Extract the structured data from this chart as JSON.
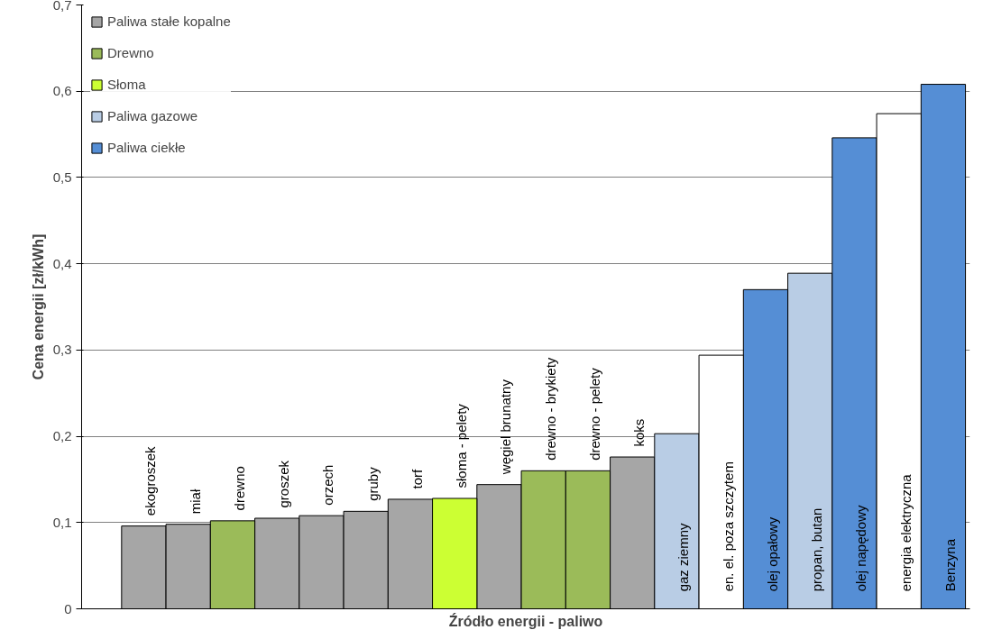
{
  "chart_data": {
    "type": "bar",
    "xlabel": "Źródło energii - paliwo",
    "ylabel": "Cena energii [zł/kWh]",
    "categories": [
      "ekogroszek",
      "miał",
      "drewno",
      "groszek",
      "orzech",
      "gruby",
      "torf",
      "słoma - pelety",
      "węgiel brunatny",
      "drewno - brykiety",
      "drewno - pelety",
      "koks",
      "gaz ziemny",
      "en. el. poza szczytem",
      "olej opałowy",
      "propan, butan",
      "olej napędowy",
      "energia elektryczna",
      "Benzyna"
    ],
    "series": [
      {
        "name": "Paliwa stałe kopalne",
        "color": "#a6a6a6",
        "values": [
          0.096,
          0.098,
          null,
          0.105,
          0.108,
          0.113,
          0.127,
          null,
          0.144,
          null,
          null,
          0.176,
          null,
          null,
          null,
          null,
          null,
          null,
          null
        ]
      },
      {
        "name": "Drewno",
        "color": "#9bbb59",
        "values": [
          null,
          null,
          0.102,
          null,
          null,
          null,
          null,
          null,
          null,
          0.16,
          0.16,
          null,
          null,
          null,
          null,
          null,
          null,
          null,
          null
        ]
      },
      {
        "name": "Słoma",
        "color": "#ccff33",
        "values": [
          null,
          null,
          null,
          null,
          null,
          null,
          null,
          0.128,
          null,
          null,
          null,
          null,
          null,
          null,
          null,
          null,
          null,
          null,
          null
        ]
      },
      {
        "name": "Paliwa gazowe",
        "color": "#b9cde5",
        "values": [
          null,
          null,
          null,
          null,
          null,
          null,
          null,
          null,
          null,
          null,
          null,
          null,
          0.203,
          null,
          null,
          0.389,
          null,
          null,
          null
        ]
      },
      {
        "name": "Paliwa ciekłe",
        "color": "#558ed5",
        "values": [
          null,
          null,
          null,
          null,
          null,
          null,
          null,
          null,
          null,
          null,
          null,
          null,
          null,
          null,
          0.37,
          null,
          0.546,
          null,
          0.608
        ]
      },
      {
        "color": "#ffffff",
        "values": [
          null,
          null,
          null,
          null,
          null,
          null,
          null,
          null,
          null,
          null,
          null,
          null,
          null,
          0.294,
          null,
          null,
          null,
          0.574,
          null
        ]
      }
    ],
    "ylim": [
      0,
      0.7
    ],
    "yticks": [
      0,
      {
        "value": 0.1,
        "label": "0,1"
      },
      {
        "value": 0.2,
        "label": "0,2"
      },
      {
        "value": 0.3,
        "label": "0,3"
      },
      {
        "value": 0.4,
        "label": "0,4"
      },
      {
        "value": 0.5,
        "label": "0,5"
      },
      {
        "value": 0.6,
        "label": "0,6"
      },
      {
        "value": 0.7,
        "label": "0,7"
      }
    ],
    "grid": "y",
    "legend": "top left"
  }
}
